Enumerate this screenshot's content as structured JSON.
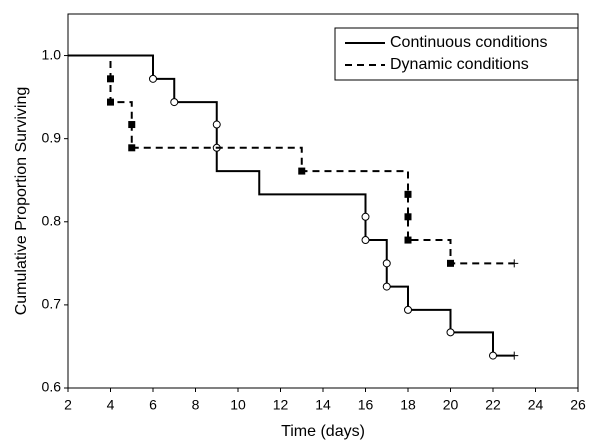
{
  "chart_data": {
    "type": "survival-step",
    "x_label": "Time (days)",
    "y_label": "Cumulative Proportion Surviving",
    "xlim": [
      2,
      26
    ],
    "xticks": [
      2,
      4,
      6,
      8,
      10,
      12,
      14,
      16,
      18,
      20,
      22,
      24,
      26
    ],
    "ylim": [
      0.6,
      1.05
    ],
    "yticks": [
      0.6,
      0.7,
      0.8,
      0.9,
      {
        "value": 1.0,
        "label": "1.0"
      }
    ],
    "legend": "top-right",
    "series": [
      {
        "name": "Continuous conditions",
        "color": "#000000",
        "dash": false,
        "marker": "open-circle",
        "x": [
          2,
          6,
          7,
          9,
          11,
          16,
          17,
          18,
          20,
          22,
          23
        ],
        "values": [
          1.0,
          0.972,
          0.944,
          0.861,
          0.833,
          0.778,
          0.722,
          0.694,
          0.667,
          0.639,
          0.639
        ],
        "marker_x": [
          6,
          7,
          9,
          9,
          16,
          16,
          17,
          17,
          18,
          20,
          22
        ],
        "marker_values": [
          0.972,
          0.944,
          0.917,
          0.889,
          0.806,
          0.778,
          0.75,
          0.722,
          0.694,
          0.667,
          0.639
        ],
        "censor_x": [
          23
        ],
        "censor_values": [
          0.639
        ]
      },
      {
        "name": "Dynamic conditions",
        "color": "#000000",
        "dash": true,
        "marker": "filled-square",
        "x": [
          2,
          4,
          5,
          13,
          18,
          20,
          23
        ],
        "values": [
          1.0,
          0.944,
          0.889,
          0.861,
          0.778,
          0.75,
          0.75
        ],
        "marker_x": [
          4,
          4,
          5,
          5,
          13,
          18,
          18,
          18,
          20
        ],
        "marker_values": [
          0.972,
          0.944,
          0.917,
          0.889,
          0.861,
          0.833,
          0.806,
          0.778,
          0.75
        ],
        "censor_x": [
          23
        ],
        "censor_values": [
          0.75
        ]
      }
    ]
  }
}
